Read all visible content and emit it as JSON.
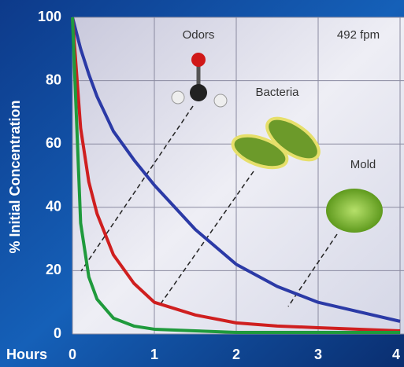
{
  "chart_data": {
    "type": "line",
    "ylabel": "% Initial Concentration",
    "xlabel": "Hours",
    "annotations": [
      "Odors",
      "492 fpm",
      "Bacteria",
      "Mold"
    ],
    "x": [
      0,
      0.1,
      0.2,
      0.3,
      0.5,
      0.75,
      1,
      1.5,
      2,
      2.5,
      3,
      3.5,
      4
    ],
    "series": [
      {
        "color": "#2b3aa6",
        "values": [
          100,
          90,
          82,
          75,
          64,
          55,
          47,
          33,
          22,
          15,
          10,
          7,
          4
        ]
      },
      {
        "color": "#cf1f1f",
        "values": [
          100,
          65,
          48,
          38,
          25,
          16,
          10,
          6,
          3.5,
          2.5,
          2,
          1.5,
          1
        ]
      },
      {
        "color": "#1f9a3c",
        "values": [
          100,
          35,
          18,
          11,
          5,
          2.5,
          1.5,
          1,
          0.5,
          0.5,
          0.5,
          0.5,
          0.5
        ]
      }
    ],
    "xlim": [
      0,
      4
    ],
    "ylim": [
      0,
      100
    ],
    "xticks": [
      0,
      1,
      2,
      3,
      4
    ],
    "yticks": [
      0,
      20,
      40,
      60,
      80,
      100
    ],
    "grid": true
  }
}
